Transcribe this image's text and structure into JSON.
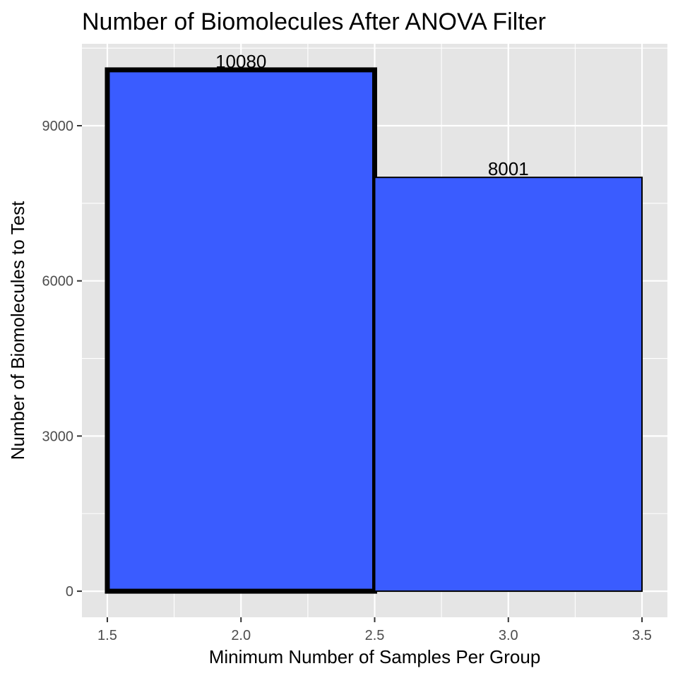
{
  "chart_data": {
    "type": "bar",
    "title": "Number of Biomolecules After ANOVA Filter",
    "xlabel": "Minimum Number of Samples Per Group",
    "ylabel": "Number of Biomolecules to Test",
    "xlim": [
      1.405,
      3.595
    ],
    "ylim": [
      -504,
      10584
    ],
    "x_ticks": [
      1.5,
      2.0,
      2.5,
      3.0,
      3.5
    ],
    "x_tick_labels": [
      "1.5",
      "2.0",
      "2.5",
      "3.0",
      "3.5"
    ],
    "y_ticks": [
      0,
      3000,
      6000,
      9000
    ],
    "y_tick_labels": [
      "0",
      "3000",
      "6000",
      "9000"
    ],
    "grid": true,
    "bars": [
      {
        "x_start": 1.5,
        "x_end": 2.5,
        "center": 2.0,
        "value": 10080,
        "label": "10080",
        "highlighted": true
      },
      {
        "x_start": 2.5,
        "x_end": 3.5,
        "center": 3.0,
        "value": 8001,
        "label": "8001",
        "highlighted": false
      }
    ],
    "colors": {
      "bar_fill": "#3a5cff",
      "bar_outline": "#000000",
      "panel_background": "#e5e5e5",
      "gridline": "#ffffff",
      "tick_text": "#4d4d4d"
    }
  }
}
